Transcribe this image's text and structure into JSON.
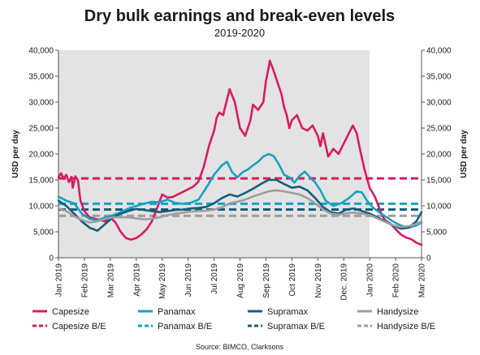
{
  "chart_data": {
    "type": "line",
    "title": "Dry bulk earnings and break-even levels",
    "subtitle": "2019-2020",
    "ylabel_left": "USD per day",
    "ylabel_right": "USD per day",
    "source": "Source: BIMCO, Clarksons",
    "ylim": [
      0,
      40000
    ],
    "yticks": [
      0,
      5000,
      10000,
      15000,
      20000,
      25000,
      30000,
      35000,
      40000
    ],
    "ytick_labels": [
      "0",
      "5,000",
      "10,000",
      "15,000",
      "20,000",
      "25,000",
      "30,000",
      "35,000",
      "40,000"
    ],
    "x_months": [
      "Jan 2019",
      "Feb 2019",
      "Mar 2019",
      "Apr 2019",
      "May 2019",
      "Jun 2019",
      "Jul 2019",
      "Aug 2019",
      "Sep 2019",
      "Oct 2019",
      "Nov 2019",
      "Dec. 2019",
      "Jan 2020",
      "Feb 2020",
      "Mar 2020"
    ],
    "xlim": [
      0,
      14
    ],
    "shaded_region": {
      "from": 0,
      "to": 12,
      "color": "#e3e3e3"
    },
    "grid": false,
    "legend_placement": "bottom",
    "series": [
      {
        "name": "Capesize",
        "color": "#d81b60",
        "style": "solid",
        "points": [
          [
            0,
            15500
          ],
          [
            0.1,
            16300
          ],
          [
            0.2,
            15200
          ],
          [
            0.3,
            16000
          ],
          [
            0.4,
            14600
          ],
          [
            0.5,
            15600
          ],
          [
            0.55,
            13500
          ],
          [
            0.65,
            15700
          ],
          [
            0.75,
            15000
          ],
          [
            0.85,
            11000
          ],
          [
            1,
            9000
          ],
          [
            1.2,
            7800
          ],
          [
            1.5,
            7400
          ],
          [
            1.8,
            7000
          ],
          [
            2,
            7800
          ],
          [
            2.2,
            6800
          ],
          [
            2.4,
            5000
          ],
          [
            2.6,
            3800
          ],
          [
            2.8,
            3500
          ],
          [
            3,
            3800
          ],
          [
            3.2,
            4500
          ],
          [
            3.4,
            5500
          ],
          [
            3.6,
            7000
          ],
          [
            3.8,
            9500
          ],
          [
            4,
            12200
          ],
          [
            4.2,
            11600
          ],
          [
            4.4,
            11700
          ],
          [
            4.6,
            12200
          ],
          [
            4.8,
            12700
          ],
          [
            5,
            13200
          ],
          [
            5.2,
            13700
          ],
          [
            5.4,
            14700
          ],
          [
            5.6,
            17500
          ],
          [
            5.8,
            21500
          ],
          [
            6,
            24500
          ],
          [
            6.1,
            27000
          ],
          [
            6.2,
            28000
          ],
          [
            6.35,
            27500
          ],
          [
            6.5,
            30500
          ],
          [
            6.6,
            32500
          ],
          [
            6.8,
            30000
          ],
          [
            7,
            25000
          ],
          [
            7.2,
            23500
          ],
          [
            7.4,
            26500
          ],
          [
            7.5,
            29500
          ],
          [
            7.7,
            28500
          ],
          [
            7.9,
            30000
          ],
          [
            8,
            34000
          ],
          [
            8.1,
            36500
          ],
          [
            8.15,
            38000
          ],
          [
            8.3,
            36000
          ],
          [
            8.5,
            33000
          ],
          [
            8.6,
            31500
          ],
          [
            8.7,
            29000
          ],
          [
            8.8,
            27500
          ],
          [
            8.9,
            25000
          ],
          [
            9,
            26500
          ],
          [
            9.2,
            27500
          ],
          [
            9.4,
            25000
          ],
          [
            9.6,
            24500
          ],
          [
            9.8,
            25500
          ],
          [
            10,
            23500
          ],
          [
            10.1,
            21500
          ],
          [
            10.2,
            24000
          ],
          [
            10.4,
            19500
          ],
          [
            10.6,
            21000
          ],
          [
            10.8,
            20000
          ],
          [
            11,
            22000
          ],
          [
            11.2,
            24000
          ],
          [
            11.35,
            25500
          ],
          [
            11.5,
            24000
          ],
          [
            11.6,
            21500
          ],
          [
            11.8,
            17000
          ],
          [
            12,
            13500
          ],
          [
            12.2,
            11800
          ],
          [
            12.4,
            9200
          ],
          [
            12.5,
            8000
          ],
          [
            12.6,
            7200
          ],
          [
            12.8,
            6600
          ],
          [
            13,
            5500
          ],
          [
            13.2,
            4500
          ],
          [
            13.4,
            3900
          ],
          [
            13.6,
            3600
          ],
          [
            13.8,
            2900
          ],
          [
            14,
            2500
          ]
        ]
      },
      {
        "name": "Panamax",
        "color": "#17a1c4",
        "style": "solid",
        "points": [
          [
            0,
            11800
          ],
          [
            0.3,
            11000
          ],
          [
            0.6,
            10500
          ],
          [
            0.9,
            8500
          ],
          [
            1.2,
            7500
          ],
          [
            1.5,
            7200
          ],
          [
            1.8,
            7800
          ],
          [
            2.1,
            8200
          ],
          [
            2.4,
            8800
          ],
          [
            2.7,
            9500
          ],
          [
            3,
            10000
          ],
          [
            3.3,
            10400
          ],
          [
            3.6,
            10800
          ],
          [
            3.9,
            10700
          ],
          [
            4.2,
            11200
          ],
          [
            4.5,
            10600
          ],
          [
            4.8,
            10400
          ],
          [
            5.1,
            10600
          ],
          [
            5.4,
            11200
          ],
          [
            5.7,
            13500
          ],
          [
            6,
            16000
          ],
          [
            6.3,
            17800
          ],
          [
            6.5,
            18500
          ],
          [
            6.7,
            16500
          ],
          [
            6.9,
            15500
          ],
          [
            7.1,
            16500
          ],
          [
            7.3,
            17000
          ],
          [
            7.5,
            17800
          ],
          [
            7.7,
            18500
          ],
          [
            7.9,
            19500
          ],
          [
            8.1,
            20000
          ],
          [
            8.3,
            19600
          ],
          [
            8.5,
            18000
          ],
          [
            8.7,
            16000
          ],
          [
            8.9,
            15500
          ],
          [
            9.1,
            14500
          ],
          [
            9.3,
            15800
          ],
          [
            9.5,
            16600
          ],
          [
            9.7,
            15500
          ],
          [
            9.9,
            14500
          ],
          [
            10.1,
            13000
          ],
          [
            10.3,
            11000
          ],
          [
            10.6,
            10000
          ],
          [
            10.9,
            10500
          ],
          [
            11.2,
            11500
          ],
          [
            11.5,
            12800
          ],
          [
            11.7,
            12600
          ],
          [
            11.9,
            11000
          ],
          [
            12.1,
            9800
          ],
          [
            12.3,
            9000
          ],
          [
            12.6,
            8000
          ],
          [
            12.9,
            7000
          ],
          [
            13.2,
            6200
          ],
          [
            13.5,
            5800
          ],
          [
            13.8,
            6200
          ],
          [
            14,
            6800
          ]
        ]
      },
      {
        "name": "Supramax",
        "color": "#155f7a",
        "style": "solid",
        "points": [
          [
            0,
            11000
          ],
          [
            0.3,
            10000
          ],
          [
            0.6,
            8500
          ],
          [
            0.9,
            7000
          ],
          [
            1.2,
            5800
          ],
          [
            1.5,
            5200
          ],
          [
            1.8,
            6500
          ],
          [
            2.1,
            7800
          ],
          [
            2.4,
            8500
          ],
          [
            2.7,
            9000
          ],
          [
            3,
            9400
          ],
          [
            3.3,
            9200
          ],
          [
            3.6,
            9000
          ],
          [
            3.9,
            8800
          ],
          [
            4.2,
            9000
          ],
          [
            4.5,
            9200
          ],
          [
            4.8,
            9300
          ],
          [
            5.1,
            9500
          ],
          [
            5.4,
            9600
          ],
          [
            5.7,
            9800
          ],
          [
            6,
            10500
          ],
          [
            6.3,
            11500
          ],
          [
            6.6,
            12200
          ],
          [
            6.9,
            11800
          ],
          [
            7.2,
            12500
          ],
          [
            7.5,
            13300
          ],
          [
            7.8,
            14200
          ],
          [
            8.1,
            15000
          ],
          [
            8.4,
            15000
          ],
          [
            8.7,
            14200
          ],
          [
            9,
            13500
          ],
          [
            9.3,
            13700
          ],
          [
            9.6,
            13000
          ],
          [
            9.9,
            11500
          ],
          [
            10.2,
            9800
          ],
          [
            10.5,
            8800
          ],
          [
            10.8,
            8500
          ],
          [
            11.1,
            9300
          ],
          [
            11.4,
            9500
          ],
          [
            11.7,
            9000
          ],
          [
            12,
            8500
          ],
          [
            12.3,
            7800
          ],
          [
            12.6,
            7000
          ],
          [
            12.9,
            6200
          ],
          [
            13.2,
            5600
          ],
          [
            13.5,
            5800
          ],
          [
            13.8,
            7000
          ],
          [
            14,
            8800
          ]
        ]
      },
      {
        "name": "Handysize",
        "color": "#9e9e9e",
        "style": "solid",
        "points": [
          [
            0,
            9500
          ],
          [
            0.3,
            9000
          ],
          [
            0.6,
            8000
          ],
          [
            0.9,
            7300
          ],
          [
            1.2,
            6800
          ],
          [
            1.5,
            7000
          ],
          [
            1.8,
            7500
          ],
          [
            2.1,
            7800
          ],
          [
            2.4,
            7800
          ],
          [
            2.7,
            7800
          ],
          [
            3,
            7600
          ],
          [
            3.3,
            7400
          ],
          [
            3.6,
            7500
          ],
          [
            3.9,
            7800
          ],
          [
            4.2,
            8200
          ],
          [
            4.5,
            8500
          ],
          [
            4.8,
            8700
          ],
          [
            5.1,
            8900
          ],
          [
            5.4,
            9000
          ],
          [
            5.7,
            9100
          ],
          [
            6,
            9300
          ],
          [
            6.3,
            9700
          ],
          [
            6.6,
            10500
          ],
          [
            6.9,
            10800
          ],
          [
            7.2,
            11200
          ],
          [
            7.5,
            11800
          ],
          [
            7.8,
            12300
          ],
          [
            8.1,
            12800
          ],
          [
            8.4,
            13000
          ],
          [
            8.7,
            12800
          ],
          [
            9,
            12500
          ],
          [
            9.3,
            12200
          ],
          [
            9.6,
            11500
          ],
          [
            9.9,
            10500
          ],
          [
            10.2,
            9300
          ],
          [
            10.5,
            8500
          ],
          [
            10.8,
            8300
          ],
          [
            11.1,
            8600
          ],
          [
            11.4,
            8700
          ],
          [
            11.7,
            8500
          ],
          [
            12,
            8200
          ],
          [
            12.3,
            7600
          ],
          [
            12.6,
            6900
          ],
          [
            12.9,
            6300
          ],
          [
            13.2,
            5900
          ],
          [
            13.5,
            6100
          ],
          [
            13.8,
            6500
          ],
          [
            14,
            7000
          ]
        ]
      },
      {
        "name": "Capesize B/E",
        "color": "#d81b60",
        "style": "dashed",
        "points": [
          [
            0,
            15300
          ],
          [
            14,
            15300
          ]
        ]
      },
      {
        "name": "Panamax B/E",
        "color": "#17a1c4",
        "style": "dashed",
        "points": [
          [
            0,
            10400
          ],
          [
            14,
            10400
          ]
        ]
      },
      {
        "name": "Supramax B/E",
        "color": "#155f7a",
        "style": "dashed",
        "points": [
          [
            0,
            9300
          ],
          [
            14,
            9300
          ]
        ]
      },
      {
        "name": "Handysize B/E",
        "color": "#9e9e9e",
        "style": "dashed",
        "points": [
          [
            0,
            8100
          ],
          [
            14,
            8100
          ]
        ]
      }
    ]
  }
}
